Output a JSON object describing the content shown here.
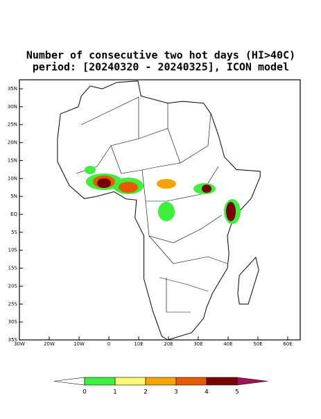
{
  "header": {
    "title": "Number of consecutive two hot days (HI>40C)",
    "subtitle": "period: [20240320 - 20240325], ICON model"
  },
  "map": {
    "lat_ticks": [
      "35N",
      "30N",
      "25N",
      "20N",
      "15N",
      "10N",
      "5N",
      "EQ",
      "5S",
      "10S",
      "15S",
      "20S",
      "25S",
      "30S",
      "35S"
    ],
    "lon_ticks": [
      "30W",
      "20W",
      "10W",
      "0",
      "10E",
      "20E",
      "30E",
      "40E",
      "50E",
      "60E"
    ]
  },
  "colorbar": {
    "levels": [
      0,
      1,
      2,
      3,
      4,
      5
    ],
    "colors": [
      "#ffffff",
      "#3cf03c",
      "#fafa78",
      "#f5a500",
      "#e65a00",
      "#780000",
      "#a0145a"
    ]
  }
}
